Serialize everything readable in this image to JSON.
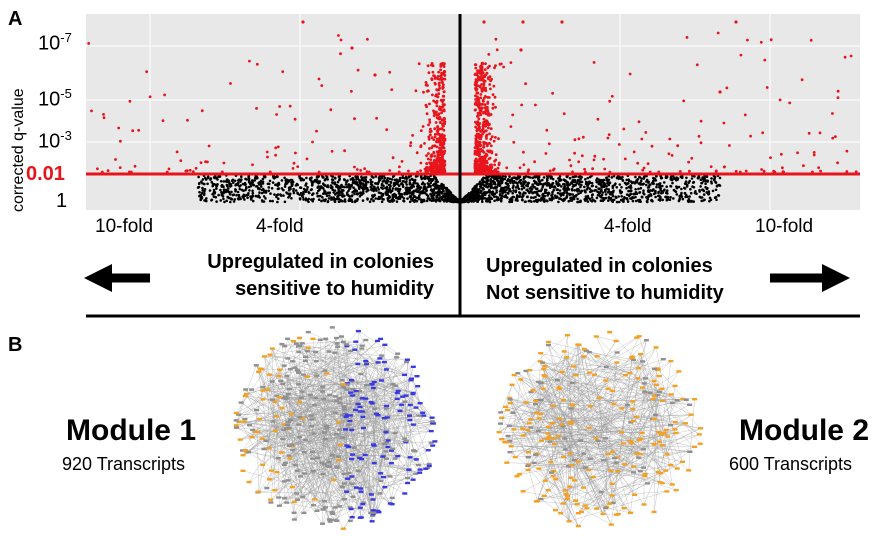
{
  "panel_a": {
    "letter": "A",
    "y_axis_label": "corrected q-value",
    "y_ticks": [
      {
        "base": "10",
        "exp": "-7"
      },
      {
        "base": "10",
        "exp": "-5"
      },
      {
        "base": "10",
        "exp": "-3"
      },
      {
        "base": "1",
        "exp": ""
      }
    ],
    "threshold_label": "0.01",
    "fold_labels": [
      "10-fold",
      "4-fold",
      "4-fold",
      "10-fold"
    ],
    "left_text": [
      "Upregulated in colonies",
      "sensitive to humidity"
    ],
    "right_text": [
      "Upregulated in colonies",
      "Not sensitive to humidity"
    ],
    "colors": {
      "significant": "#e8141c",
      "nonsignificant": "#000000",
      "plot_bg": "#e8e8e8",
      "threshold_line": "#e8141c"
    }
  },
  "panel_b": {
    "letter": "B",
    "modules": [
      {
        "title": "Module 1",
        "subtitle": "920 Transcripts"
      },
      {
        "title": "Module 2",
        "subtitle": "600 Transcripts"
      }
    ],
    "colors": {
      "orange": "#f4a020",
      "blue": "#3a3ae0",
      "gray": "#909090"
    }
  }
}
